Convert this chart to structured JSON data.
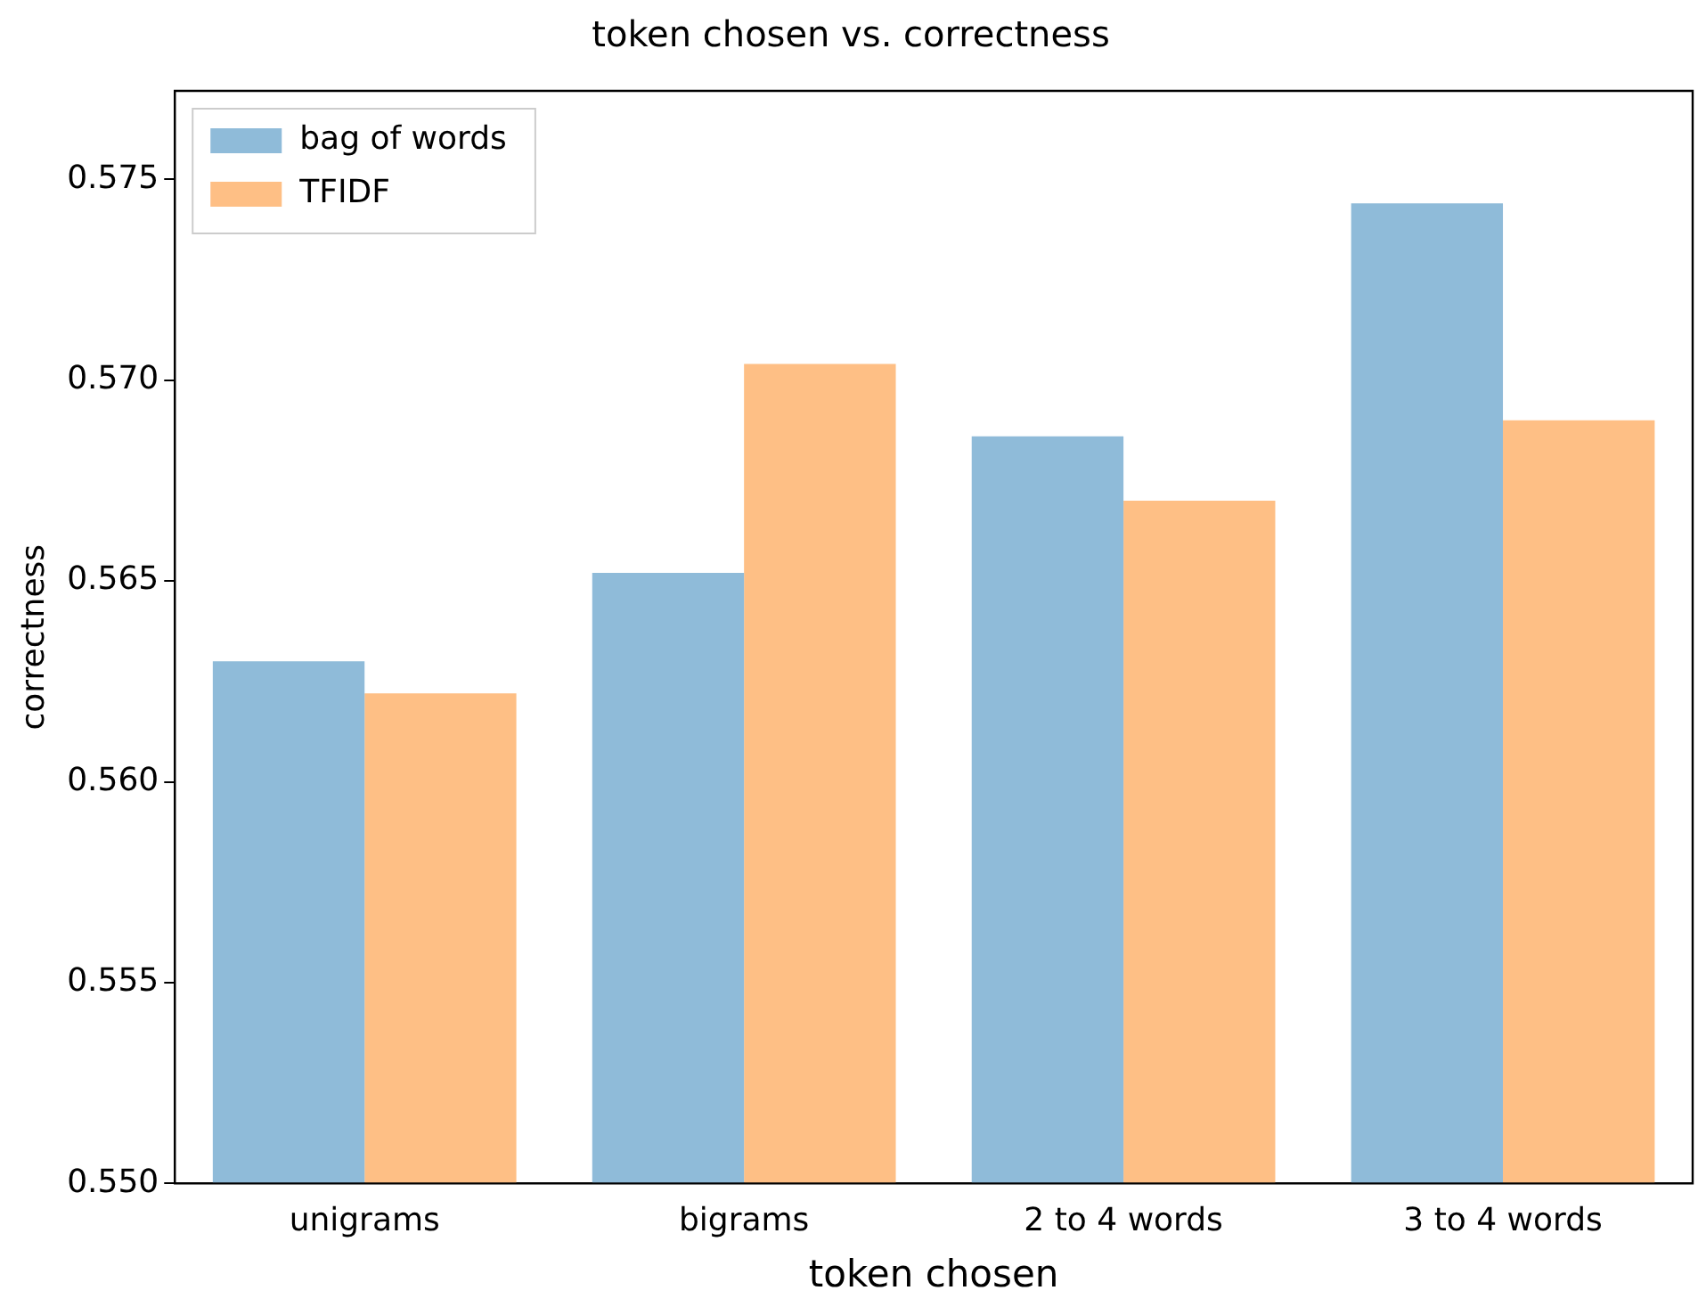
{
  "chart_data": {
    "type": "bar",
    "title": "token chosen vs. correctness",
    "xlabel": "token chosen",
    "ylabel": "correctness",
    "categories": [
      "unigrams",
      "bigrams",
      "2 to 4 words",
      "3 to 4 words"
    ],
    "series": [
      {
        "name": "bag of words",
        "color": "#8fbbd9",
        "values": [
          0.563,
          0.5652,
          0.5686,
          0.5744
        ]
      },
      {
        "name": "TFIDF",
        "color": "#febf85",
        "values": [
          0.5622,
          0.5704,
          0.567,
          0.569
        ]
      }
    ],
    "ylim": [
      0.55,
      0.5772
    ],
    "yticks": [
      {
        "value": 0.55,
        "label": "0.550"
      },
      {
        "value": 0.555,
        "label": "0.555"
      },
      {
        "value": 0.56,
        "label": "0.560"
      },
      {
        "value": 0.565,
        "label": "0.565"
      },
      {
        "value": 0.57,
        "label": "0.570"
      },
      {
        "value": 0.575,
        "label": "0.575"
      }
    ],
    "grid": false,
    "legend": "top left"
  }
}
